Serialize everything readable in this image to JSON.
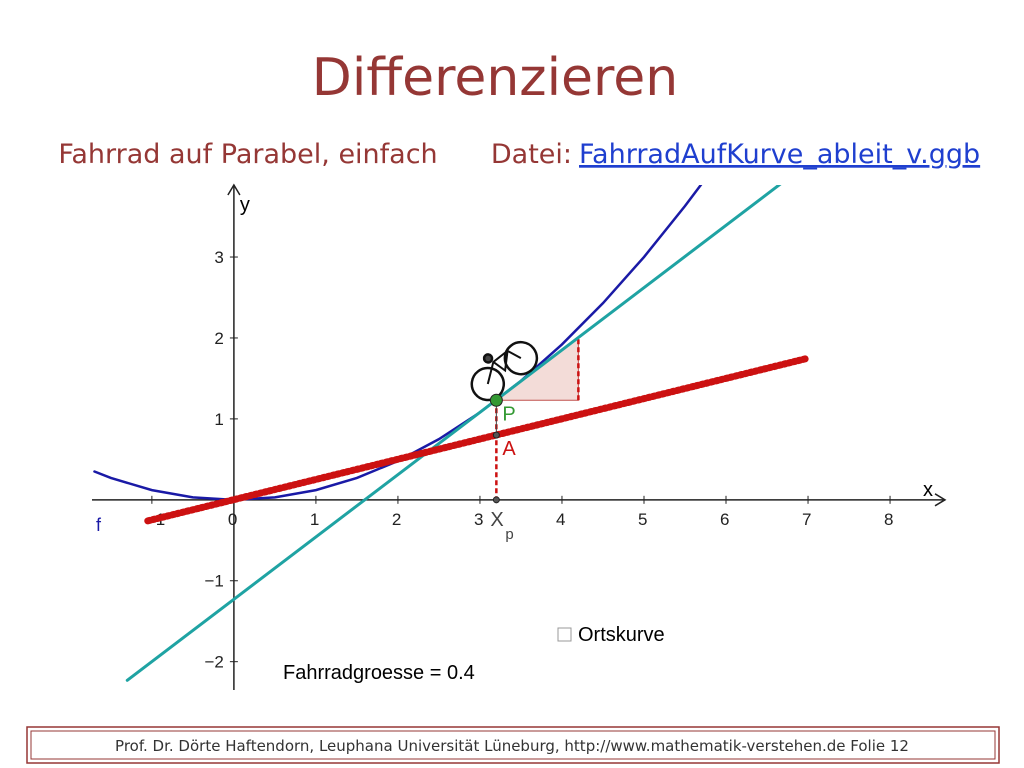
{
  "slide": {
    "title": "Differenzieren",
    "subtitle": "Fahrrad auf Parabel, einfach",
    "file_label": "Datei:",
    "file_link": "FahrradAufKurve_ableit_v.ggb",
    "footer": "Prof. Dr. Dörte Haftendorn, Leuphana Universität Lüneburg,  http://www.mathematik-verstehen.de     Folie 12"
  },
  "chart_data": {
    "type": "line",
    "x_label": "x",
    "y_label": "y",
    "xlim": [
      -1.73,
      8.67
    ],
    "ylim": [
      -2.35,
      3.89
    ],
    "xticks": [
      {
        "value": -1,
        "label": "−1"
      },
      0,
      1,
      2,
      3,
      4,
      5,
      6,
      7,
      8
    ],
    "yticks": [
      {
        "value": -2,
        "label": "−2"
      },
      {
        "value": -1,
        "label": "−1"
      },
      1,
      2,
      3
    ],
    "series": [
      {
        "label": "f",
        "color": "#1a1aa6",
        "x": [
          -1.7,
          -1.5,
          -1,
          -0.5,
          0,
          0.5,
          1,
          1.5,
          2,
          2.5,
          3,
          3.5,
          4,
          4.5,
          5,
          5.5,
          5.7
        ],
        "values": [
          0.35,
          0.27,
          0.12,
          0.03,
          0,
          0.03,
          0.12,
          0.27,
          0.48,
          0.75,
          1.08,
          1.47,
          1.92,
          2.43,
          3,
          3.63,
          3.9
        ]
      },
      {
        "color": "#1fa3a3",
        "x": [
          -1.3,
          6.66
        ],
        "values": [
          -2.23,
          3.9
        ]
      },
      {
        "color": "#cc1111",
        "x": [
          -1.05,
          7
        ],
        "values": [
          -0.26,
          1.75
        ]
      }
    ],
    "points": [
      {
        "label": "P",
        "x": 3.2,
        "y": 1.23,
        "color": "#339933"
      },
      {
        "label": "A",
        "x": 3.2,
        "y": 0.8,
        "color": "#555555"
      },
      {
        "label": "X",
        "sub": "p",
        "x": 3.2,
        "y": 0,
        "color": "#555555"
      }
    ],
    "slope_triangle": {
      "x": [
        3.2,
        4.2
      ],
      "y": [
        1.23,
        2.0
      ]
    },
    "checkbox_label": "Ortskurve",
    "size_text": "Fahrradgroesse = 0.4"
  }
}
